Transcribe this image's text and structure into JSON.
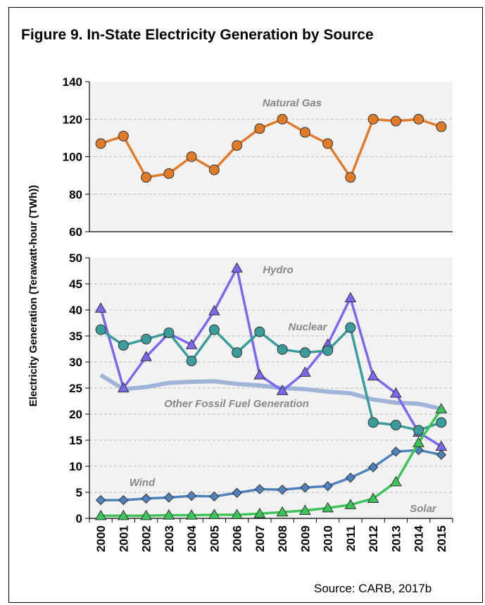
{
  "title": "Figure 9. In-State Electricity Generation by Source",
  "source": "Source: CARB, 2017b",
  "chart_data": {
    "type": "line",
    "ylabel": "Electricity Generation (Terawatt-hour (TWh))",
    "xlabel": "",
    "x": [
      "2000",
      "2001",
      "2002",
      "2003",
      "2004",
      "2005",
      "2006",
      "2007",
      "2008",
      "2009",
      "2010",
      "2011",
      "2012",
      "2013",
      "2014",
      "2015"
    ],
    "grid": true,
    "legend": "none",
    "panels": [
      {
        "ylim": [
          60,
          140
        ],
        "yticks": [
          "60",
          "80",
          "100",
          "120",
          "140"
        ],
        "series": [
          {
            "name": "Natural Gas",
            "color": "#E07B2A",
            "marker": "circle",
            "values": [
              107,
              111,
              89,
              91,
              100,
              93,
              106,
              115,
              120,
              113,
              107,
              89,
              120,
              119,
              120,
              116
            ]
          }
        ]
      },
      {
        "ylim": [
          0,
          50
        ],
        "yticks": [
          "0",
          "5",
          "10",
          "15",
          "20",
          "25",
          "30",
          "35",
          "40",
          "45",
          "50"
        ],
        "series": [
          {
            "name": "Other Fossil Fuel Generation",
            "color": "#9FB4D6",
            "marker": "none",
            "values": [
              27.5,
              24.8,
              25.2,
              26,
              26.2,
              26.3,
              25.8,
              25.5,
              25,
              24.8,
              24.3,
              24,
              22.8,
              22.2,
              22,
              21
            ]
          },
          {
            "name": "Hydro",
            "color": "#7B68EE",
            "marker": "triangle",
            "values": [
              40.3,
              25,
              31,
              35.5,
              33.3,
              39.8,
              48,
              27.5,
              24.5,
              28,
              33.4,
              42.3,
              27.3,
              24,
              16.5,
              13.8
            ]
          },
          {
            "name": "Nuclear",
            "color": "#3B9C9C",
            "marker": "circle",
            "values": [
              36.2,
              33.2,
              34.4,
              35.6,
              30.2,
              36.2,
              31.8,
              35.8,
              32.4,
              31.8,
              32.2,
              36.6,
              18.4,
              17.9,
              16.9,
              18.4
            ]
          },
          {
            "name": "Wind",
            "color": "#4F81BD",
            "marker": "diamond",
            "values": [
              3.5,
              3.5,
              3.8,
              4.0,
              4.3,
              4.2,
              4.9,
              5.6,
              5.5,
              5.9,
              6.2,
              7.8,
              9.8,
              12.8,
              13.1,
              12.2
            ]
          },
          {
            "name": "Solar",
            "color": "#3CC35A",
            "marker": "triangle",
            "values": [
              0.5,
              0.5,
              0.5,
              0.6,
              0.6,
              0.7,
              0.7,
              0.9,
              1.2,
              1.5,
              2.0,
              2.6,
              3.8,
              7.0,
              14.5,
              21
            ]
          }
        ]
      }
    ]
  }
}
